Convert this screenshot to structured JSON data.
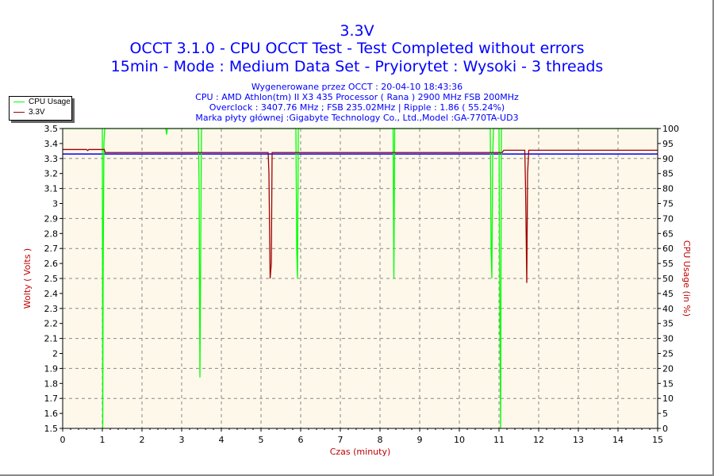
{
  "header": {
    "title": "3.3V",
    "line1": "OCCT 3.1.0 - CPU OCCT Test - Test Completed without errors",
    "line2": "15min - Mode : Medium Data Set - Pryiorytet : Wysoki - 3 threads"
  },
  "info": [
    "Wygenerowane przez OCCT : 20-04-10 18:43:36",
    "CPU : AMD Athlon(tm) II X3 435 Processor ( Rana ) 2900 MHz FSB 200MHz",
    "Overclock : 3407.76 MHz ; FSB 235.02MHz | Ripple : 1.86 ( 55.24%)",
    "Marka płyty głównej :Gigabyte Technology Co., Ltd.,Model :GA-770TA-UD3"
  ],
  "chart_data": {
    "type": "line",
    "xlabel": "Czas (minuty)",
    "ylabel": "Wolty ( Volts )",
    "y2label": "CPU Usage (in %)",
    "xlim": [
      0,
      15
    ],
    "ylim": [
      1.5,
      3.5
    ],
    "y2lim": [
      0,
      100
    ],
    "xticks": [
      "0",
      "1",
      "2",
      "3",
      "4",
      "5",
      "6",
      "7",
      "8",
      "9",
      "10",
      "11",
      "12",
      "13",
      "14",
      "15"
    ],
    "yticks": [
      "1.5",
      "1.6",
      "1.7",
      "1.8",
      "1.9",
      "2",
      "2.1",
      "2.2",
      "2.3",
      "2.4",
      "2.5",
      "2.6",
      "2.7",
      "2.8",
      "2.9",
      "3",
      "3.1",
      "3.2",
      "3.3",
      "3.4",
      "3.5"
    ],
    "y2ticks": [
      "0",
      "5",
      "10",
      "15",
      "20",
      "25",
      "30",
      "35",
      "40",
      "45",
      "50",
      "55",
      "60",
      "65",
      "70",
      "75",
      "80",
      "85",
      "90",
      "95",
      "100"
    ],
    "grid": true,
    "legend": "top-left",
    "reference_voltage": 3.33,
    "colors": {
      "cpu": "#00ff00",
      "voltage": "#a00000",
      "reference": "#0000ff",
      "plot_bg": "#fdf8ea"
    },
    "series": [
      {
        "name": "CPU Usage",
        "axis": "right",
        "points": [
          [
            0,
            100
          ],
          [
            1.0,
            100
          ],
          [
            1.01,
            0
          ],
          [
            1.02,
            50
          ],
          [
            1.04,
            95
          ],
          [
            1.06,
            100
          ],
          [
            2.6,
            100
          ],
          [
            2.62,
            98
          ],
          [
            2.64,
            100
          ],
          [
            3.42,
            100
          ],
          [
            3.44,
            80
          ],
          [
            3.46,
            17
          ],
          [
            3.48,
            60
          ],
          [
            3.5,
            100
          ],
          [
            5.88,
            100
          ],
          [
            5.9,
            60
          ],
          [
            5.92,
            50
          ],
          [
            5.94,
            100
          ],
          [
            8.33,
            100
          ],
          [
            8.35,
            50
          ],
          [
            8.37,
            100
          ],
          [
            10.78,
            100
          ],
          [
            10.8,
            60
          ],
          [
            10.82,
            50
          ],
          [
            10.84,
            90
          ],
          [
            10.86,
            100
          ],
          [
            11.0,
            100
          ],
          [
            11.02,
            40
          ],
          [
            11.04,
            0
          ],
          [
            11.06,
            100
          ],
          [
            15,
            100
          ]
        ]
      },
      {
        "name": "3.3V",
        "axis": "left",
        "points": [
          [
            0,
            3.36
          ],
          [
            0.6,
            3.36
          ],
          [
            0.63,
            3.353
          ],
          [
            0.66,
            3.36
          ],
          [
            1.05,
            3.36
          ],
          [
            1.07,
            3.34
          ],
          [
            5.18,
            3.34
          ],
          [
            5.2,
            3.2
          ],
          [
            5.23,
            2.5
          ],
          [
            5.26,
            2.6
          ],
          [
            5.28,
            3.34
          ],
          [
            11.08,
            3.34
          ],
          [
            11.12,
            3.355
          ],
          [
            11.65,
            3.355
          ],
          [
            11.67,
            3.1
          ],
          [
            11.7,
            2.47
          ],
          [
            11.72,
            3.2
          ],
          [
            11.75,
            3.355
          ],
          [
            15,
            3.355
          ]
        ]
      }
    ]
  }
}
